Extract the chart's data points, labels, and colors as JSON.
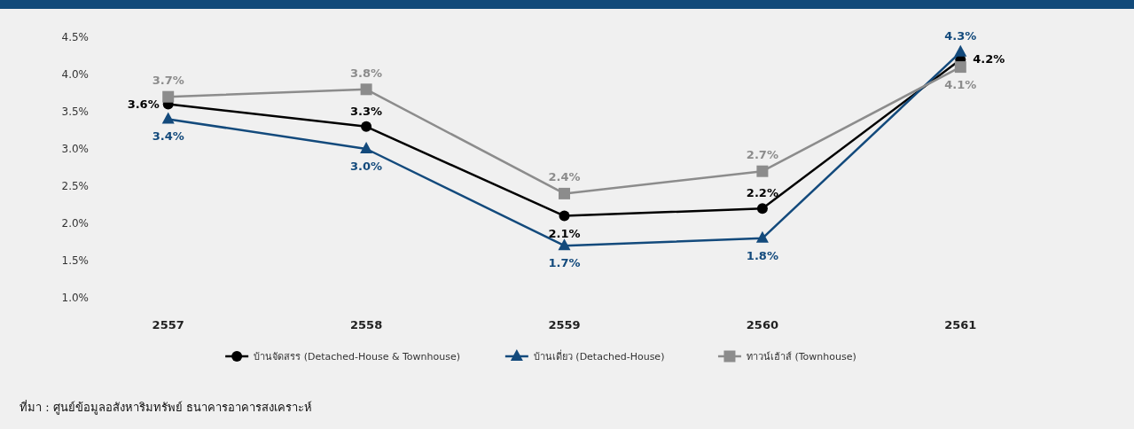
{
  "chart_data": {
    "type": "line",
    "categories": [
      "2557",
      "2558",
      "2559",
      "2560",
      "2561"
    ],
    "ylim": [
      1.0,
      4.5
    ],
    "yticks": [
      {
        "value": 1.0,
        "label": "1.0%"
      },
      {
        "value": 1.5,
        "label": "1.5%"
      },
      {
        "value": 2.0,
        "label": "2.0%"
      },
      {
        "value": 2.5,
        "label": "2.5%"
      },
      {
        "value": 3.0,
        "label": "3.0%"
      },
      {
        "value": 3.5,
        "label": "3.5%"
      },
      {
        "value": 4.0,
        "label": "4.0%"
      },
      {
        "value": 4.5,
        "label": "4.5%"
      }
    ],
    "grid": false,
    "legend": "bottom",
    "line_style": "solid",
    "series": [
      {
        "name": "บ้านจัดสรร (Detached-House & Townhouse)",
        "color": "#000000",
        "marker": "circle",
        "values": [
          3.6,
          3.3,
          2.1,
          2.2,
          4.2
        ],
        "value_labels": [
          "3.6%",
          "3.3%",
          "2.1%",
          "2.2%",
          "4.2%"
        ]
      },
      {
        "name": "บ้านเดี่ยว (Detached-House)",
        "color": "#134a7c",
        "marker": "triangle",
        "values": [
          3.4,
          3.0,
          1.7,
          1.8,
          4.3
        ],
        "value_labels": [
          "3.4%",
          "3.0%",
          "1.7%",
          "1.8%",
          "4.3%"
        ]
      },
      {
        "name": "ทาวน์เฮ้าส์ (Townhouse)",
        "color": "#8c8c8c",
        "marker": "square",
        "values": [
          3.7,
          3.8,
          2.4,
          2.7,
          4.1
        ],
        "value_labels": [
          "3.7%",
          "3.8%",
          "2.4%",
          "2.7%",
          "4.1%"
        ]
      }
    ],
    "annotations": [
      "ที่มา : ศูนย์ข้อมูลอสังหาริมทรัพย์ ธนาคารอาคารสงเคราะห์"
    ]
  }
}
